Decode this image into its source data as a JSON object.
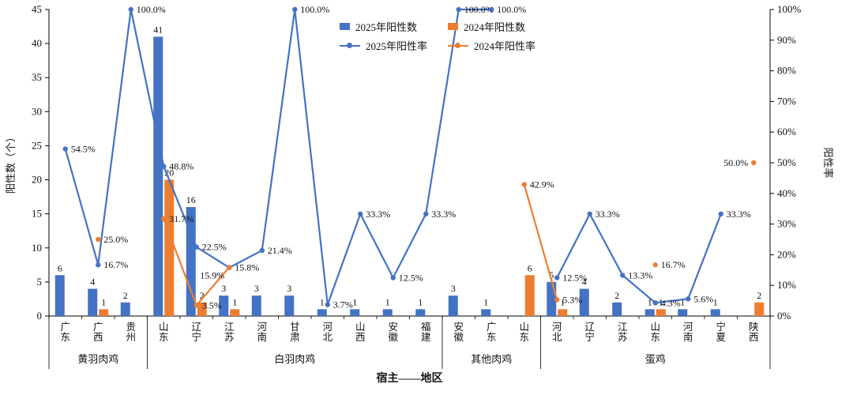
{
  "chart_data": {
    "type": "bar-line-combo",
    "title": "",
    "left_axis": {
      "label": "阳性数（个）",
      "min": 0,
      "max": 45,
      "ticks": [
        0,
        5,
        10,
        15,
        20,
        25,
        30,
        35,
        40,
        45
      ]
    },
    "right_axis": {
      "label": "阳性率",
      "min": 0,
      "max": 100,
      "ticks": [
        0,
        10,
        20,
        30,
        40,
        50,
        60,
        70,
        80,
        90,
        100
      ],
      "tick_suffix": "%"
    },
    "x_axis": {
      "title": "宿主——地区"
    },
    "grid": false,
    "legend_position": "top-center",
    "groups": [
      {
        "name": "黄羽肉鸡",
        "regions": [
          "广东",
          "广西",
          "贵州"
        ]
      },
      {
        "name": "白羽肉鸡",
        "regions": [
          "山东",
          "辽宁",
          "江苏",
          "河南",
          "甘肃",
          "河北",
          "山西",
          "安徽",
          "福建"
        ]
      },
      {
        "name": "其他肉鸡",
        "regions": [
          "安徽",
          "广东",
          "山东"
        ]
      },
      {
        "name": "蛋鸡",
        "regions": [
          "河北",
          "辽宁",
          "江苏",
          "山东",
          "河南",
          "宁夏",
          "陕西"
        ]
      }
    ],
    "series": [
      {
        "name": "2025年阳性数",
        "type": "bar",
        "color": "#4472C4",
        "values": [
          6,
          4,
          2,
          41,
          16,
          3,
          3,
          3,
          1,
          1,
          1,
          1,
          3,
          1,
          null,
          5,
          4,
          2,
          1,
          1,
          1,
          null
        ]
      },
      {
        "name": "2024年阳性数",
        "type": "bar",
        "color": "#ED7D31",
        "values": [
          null,
          1,
          null,
          20,
          2,
          1,
          null,
          null,
          null,
          null,
          null,
          null,
          null,
          null,
          6,
          1,
          null,
          null,
          1,
          null,
          null,
          2
        ]
      },
      {
        "name": "2025年阳性率",
        "type": "line",
        "color": "#4472C4",
        "values": [
          54.5,
          16.7,
          100.0,
          48.8,
          22.5,
          15.8,
          21.4,
          100.0,
          3.7,
          33.3,
          12.5,
          33.3,
          100.0,
          100.0,
          null,
          12.5,
          33.3,
          13.3,
          4.3,
          5.6,
          33.3,
          null
        ]
      },
      {
        "name": "2024年阳性率",
        "type": "line",
        "color": "#ED7D31",
        "values": [
          null,
          25.0,
          null,
          31.7,
          3.5,
          15.9,
          null,
          null,
          null,
          null,
          null,
          null,
          null,
          null,
          42.9,
          5.3,
          null,
          null,
          16.7,
          null,
          null,
          50.0
        ]
      }
    ]
  }
}
